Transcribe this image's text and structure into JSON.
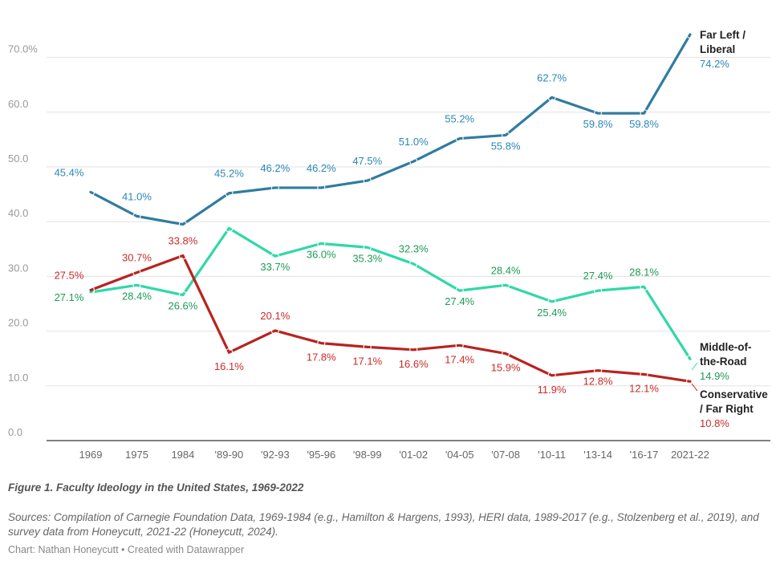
{
  "chart_data": {
    "type": "line",
    "categories": [
      "1969",
      "1975",
      "1984",
      "'89-90",
      "'92-93",
      "'95-96",
      "'98-99",
      "'01-02",
      "'04-05",
      "'07-08",
      "'10-11",
      "'13-14",
      "'16-17",
      "2021-22"
    ],
    "y_ticks": [
      "0.0",
      "10.0",
      "20.0",
      "30.0",
      "40.0",
      "50.0",
      "60.0",
      "70.0%"
    ],
    "ylim": [
      0,
      75
    ],
    "grid": true,
    "series": [
      {
        "name": "Far Left / Liberal",
        "label_lines": [
          "Far Left /",
          "Liberal"
        ],
        "end_label": "74.2%",
        "color": "#2f7ca0",
        "label_color": "#2b88b5",
        "values": [
          45.4,
          41.0,
          39.5,
          45.2,
          46.2,
          46.2,
          47.5,
          51.0,
          55.2,
          55.8,
          62.7,
          59.8,
          59.8,
          74.2
        ],
        "data_labels": [
          "45.4%",
          "41.0%",
          "",
          "45.2%",
          "46.2%",
          "46.2%",
          "47.5%",
          "51.0%",
          "55.2%",
          "55.8%",
          "62.7%",
          "59.8%",
          "59.8%",
          ""
        ]
      },
      {
        "name": "Middle-of-the-Road",
        "label_lines": [
          "Middle-of-",
          "the-Road"
        ],
        "end_label": "14.9%",
        "color": "#2fd8a8",
        "label_color": "#1e9a57",
        "values": [
          27.1,
          28.4,
          26.6,
          38.8,
          33.7,
          36.0,
          35.3,
          32.3,
          27.4,
          28.4,
          25.4,
          27.4,
          28.1,
          14.9
        ],
        "data_labels": [
          "27.1%",
          "28.4%",
          "26.6%",
          "",
          "33.7%",
          "36.0%",
          "35.3%",
          "32.3%",
          "27.4%",
          "28.4%",
          "25.4%",
          "27.4%",
          "28.1%",
          ""
        ]
      },
      {
        "name": "Conservative / Far Right",
        "label_lines": [
          "Conservative",
          "/ Far Right"
        ],
        "end_label": "10.8%",
        "color": "#b8231f",
        "label_color": "#cc2a2a",
        "values": [
          27.5,
          30.7,
          33.8,
          16.1,
          20.1,
          17.8,
          17.1,
          16.6,
          17.4,
          15.9,
          11.9,
          12.8,
          12.1,
          10.8
        ],
        "data_labels": [
          "27.5%",
          "30.7%",
          "33.8%",
          "16.1%",
          "20.1%",
          "17.8%",
          "17.1%",
          "16.6%",
          "17.4%",
          "15.9%",
          "11.9%",
          "12.8%",
          "12.1%",
          ""
        ]
      }
    ],
    "title": "Figure 1. Faculty Ideology in the United States, 1969-2022",
    "sources": "Sources: Compilation of Carnegie Foundation Data, 1969-1984 (e.g., Hamilton & Hargens, 1993), HERI data, 1989-2017 (e.g., Stolzenberg et al., 2019), and survey data from Honeycutt, 2021-22 (Honeycutt, 2024).",
    "credit": "Chart: Nathan Honeycutt • Created with Datawrapper"
  }
}
